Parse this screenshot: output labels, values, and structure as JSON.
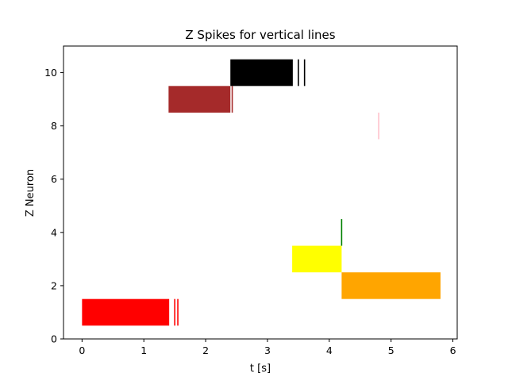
{
  "chart_data": {
    "type": "eventplot",
    "title": "Z Spikes for vertical lines",
    "xlabel": "t [s]",
    "ylabel": "Z Neuron",
    "xlim": [
      -0.3,
      6.07
    ],
    "ylim": [
      0,
      11
    ],
    "xticks": [
      0,
      1,
      2,
      3,
      4,
      5,
      6
    ],
    "yticks": [
      0,
      2,
      4,
      6,
      8,
      10
    ],
    "xtick_labels": [
      "0",
      "1",
      "2",
      "3",
      "4",
      "5",
      "6"
    ],
    "ytick_labels": [
      "0",
      "2",
      "4",
      "6",
      "8",
      "10"
    ],
    "grid": false,
    "series": [
      {
        "neuron": 1,
        "color": "#ff0000",
        "span": [
          0.0,
          1.41
        ],
        "spikes": [
          1.5,
          1.55
        ],
        "y_range": [
          0.5,
          1.5
        ]
      },
      {
        "neuron": 2,
        "color": "#ffa500",
        "span": [
          4.2,
          5.8
        ],
        "spikes": [],
        "y_range": [
          1.5,
          2.5
        ]
      },
      {
        "neuron": 3,
        "color": "#ffff00",
        "span": [
          3.4,
          4.2
        ],
        "spikes": [],
        "y_range": [
          2.5,
          3.5
        ]
      },
      {
        "neuron": 4,
        "color": "#008000",
        "span": null,
        "spikes": [
          4.2
        ],
        "y_range": [
          3.5,
          4.5
        ]
      },
      {
        "neuron": 8,
        "color": "#ffc0cb",
        "span": null,
        "spikes": [
          4.8
        ],
        "y_range": [
          7.5,
          8.5
        ]
      },
      {
        "neuron": 9,
        "color": "#a52a2a",
        "span": [
          1.4,
          2.4
        ],
        "spikes": [
          2.43
        ],
        "y_range": [
          8.5,
          9.5
        ]
      },
      {
        "neuron": 10,
        "color": "#000000",
        "span": [
          2.4,
          3.41
        ],
        "spikes": [
          3.5,
          3.6
        ],
        "y_range": [
          9.5,
          10.5
        ]
      }
    ]
  }
}
